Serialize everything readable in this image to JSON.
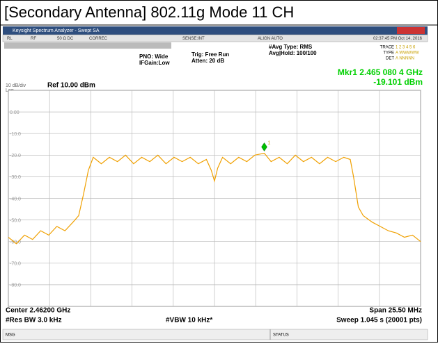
{
  "page_title": "[Secondary Antenna] 802.11g Mode 11 CH",
  "window": {
    "title": "Keysight Spectrum Analyzer - Swept SA",
    "toolbar": [
      "RL",
      "RF",
      "50 Ω  DC",
      "CORREC",
      "SENSE:INT",
      "ALIGN AUTO",
      "02:37:45 PM Oct 14, 2016"
    ],
    "pno": "PNO: Wide",
    "ifgain": "IFGain:Low",
    "trig": "Trig: Free Run",
    "atten": "Atten: 20 dB",
    "avg_type": "#Avg Type: RMS",
    "avg_hold": "Avg|Hold: 100/100",
    "trace_row": "TRACE",
    "trace_nums": "1 2 3 4 5 6",
    "type_row": "TYPE",
    "type_vals": "A WWWWW",
    "det_row": "DET",
    "det_vals": "A NNNNN",
    "status_msg": "MSG",
    "status": "STATUS"
  },
  "chart_data": {
    "type": "line",
    "scale_label": "10 dB/div",
    "log_label": "Log",
    "ref_label": "Ref 10.00 dBm",
    "center_label": "Center 2.46200 GHz",
    "rbw_label": "#Res BW 3.0 kHz",
    "vbw_label": "#VBW 10 kHz*",
    "span_label": "Span 25.50 MHz",
    "sweep_label": "Sweep  1.045 s (20001 pts)",
    "xlim": [
      2449.25,
      2474.75
    ],
    "ylim": [
      -90,
      10
    ],
    "yticks": [
      {
        "value": 0,
        "label": "0.00"
      },
      {
        "value": -10,
        "label": "-10.0"
      },
      {
        "value": -20,
        "label": "-20.0"
      },
      {
        "value": -30,
        "label": "-30.0"
      },
      {
        "value": -40,
        "label": "-40.0"
      },
      {
        "value": -50,
        "label": "-50.0"
      },
      {
        "value": -60,
        "label": "-60.0"
      },
      {
        "value": -70,
        "label": "-70.0"
      },
      {
        "value": -80,
        "label": "-80.0"
      }
    ],
    "grid": true,
    "color": "#f0a000",
    "x": [
      2449.25,
      2449.75,
      2450.25,
      2450.75,
      2451.25,
      2451.75,
      2452.25,
      2452.75,
      2453.25,
      2453.6,
      2453.9,
      2454.2,
      2454.5,
      2455,
      2455.5,
      2456,
      2456.5,
      2457,
      2457.5,
      2458,
      2458.5,
      2459,
      2459.5,
      2460,
      2460.5,
      2461,
      2461.5,
      2461.8,
      2462,
      2462.2,
      2462.5,
      2463,
      2463.5,
      2464,
      2464.5,
      2465.08,
      2465.5,
      2466,
      2466.5,
      2467,
      2467.5,
      2468,
      2468.5,
      2469,
      2469.5,
      2470,
      2470.4,
      2470.6,
      2470.9,
      2471.2,
      2471.75,
      2472.25,
      2472.75,
      2473.25,
      2473.75,
      2474.25,
      2474.75
    ],
    "values": [
      -58,
      -61,
      -57,
      -59,
      -55,
      -57,
      -53,
      -55,
      -51,
      -48,
      -38,
      -27,
      -21,
      -24,
      -21,
      -23,
      -20,
      -24,
      -21,
      -23,
      -20,
      -24,
      -21,
      -23,
      -21,
      -24,
      -22,
      -27,
      -32,
      -26,
      -21,
      -24,
      -21,
      -23,
      -20,
      -19.1,
      -23,
      -21,
      -24,
      -20,
      -23,
      -21,
      -24,
      -21,
      -23,
      -21,
      -22,
      -30,
      -44,
      -48,
      -51,
      -53,
      -55,
      -56,
      -58,
      -57,
      -60
    ],
    "marker": {
      "label": "1",
      "x": 2465.0804,
      "y": -19.101,
      "color": "#00c000",
      "readout": "Mkr1 2.465 080 4 GHz",
      "value_label": "-19.101 dBm"
    }
  }
}
